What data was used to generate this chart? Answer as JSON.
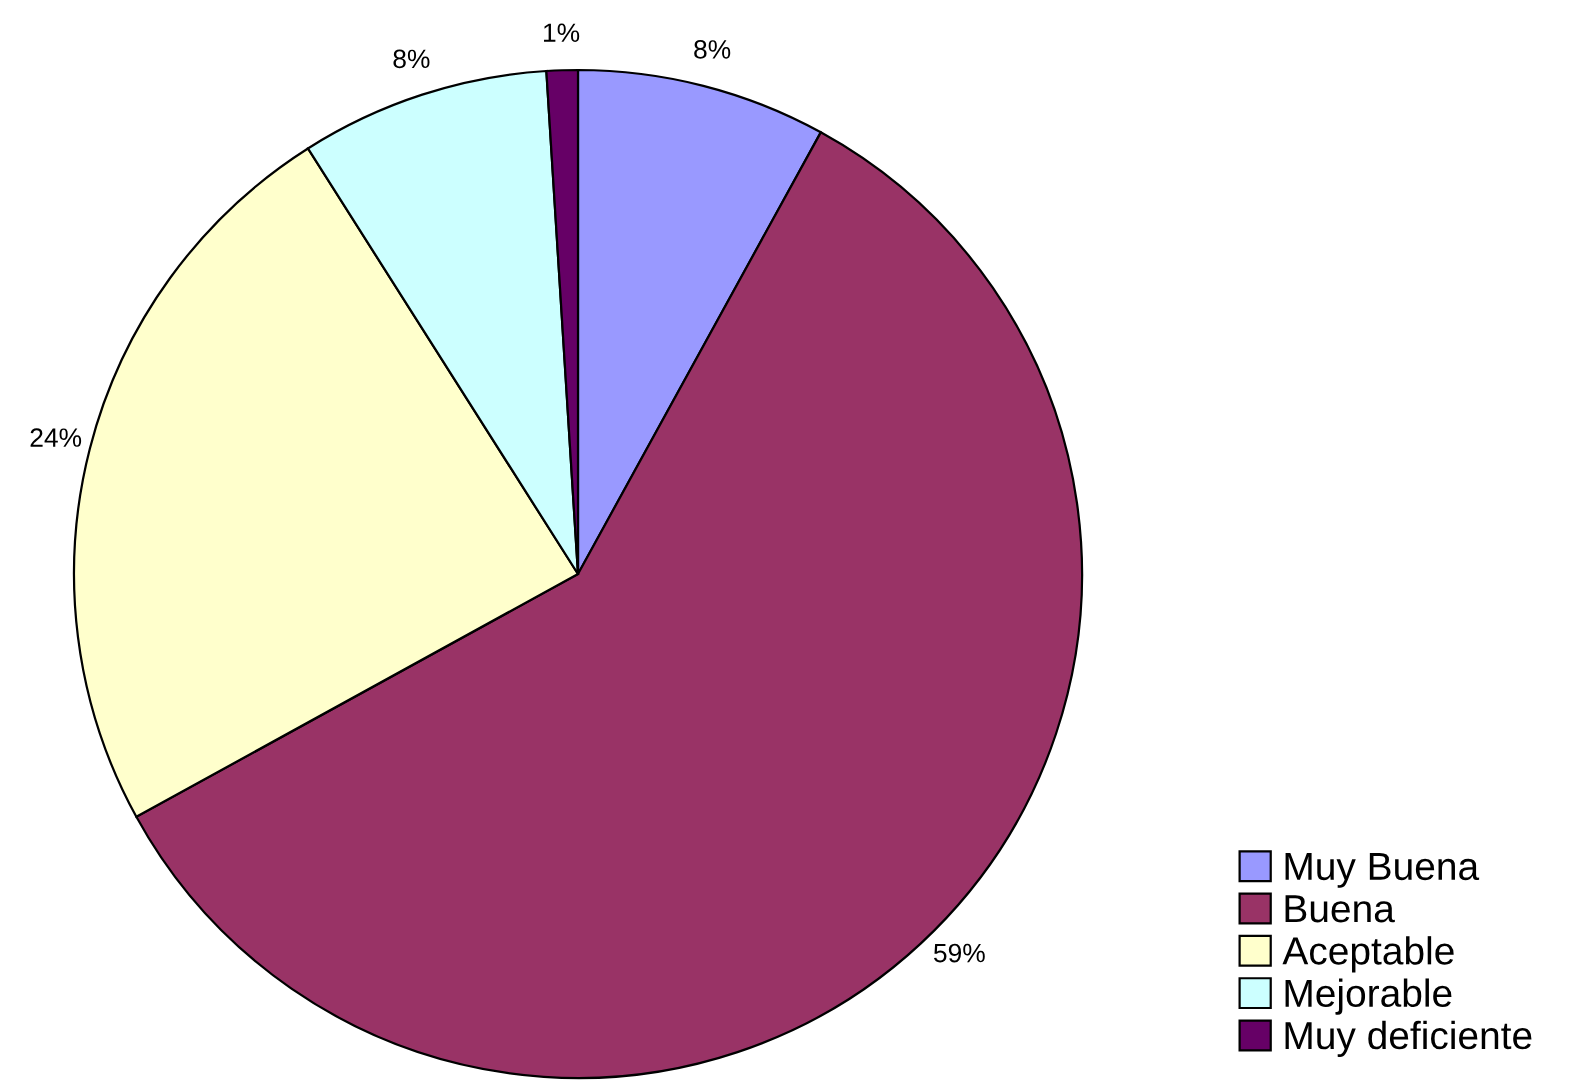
{
  "chart_data": {
    "type": "pie",
    "categories": [
      "Muy Buena",
      "Buena",
      "Aceptable",
      "Mejorable",
      "Muy deficiente"
    ],
    "values": [
      8,
      59,
      24,
      8,
      1
    ],
    "colors": [
      "#9999ff",
      "#993366",
      "#ffffcc",
      "#ccffff",
      "#660066"
    ],
    "value_labels": [
      "8%",
      "59%",
      "24%",
      "8%",
      "1%"
    ],
    "legend": "bottom right"
  }
}
